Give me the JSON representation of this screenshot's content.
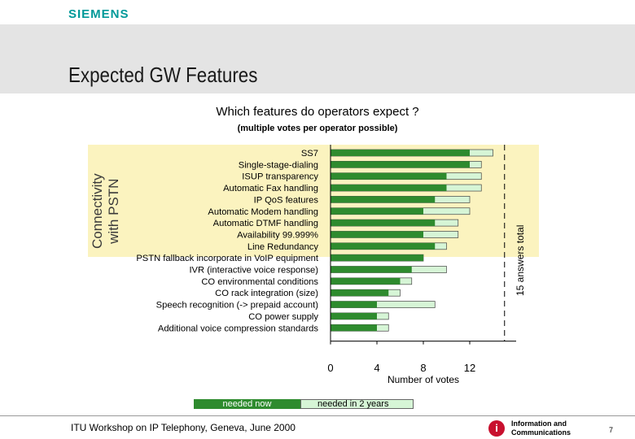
{
  "brand": {
    "logo_text": "SIEMENS",
    "accent": "#009999"
  },
  "slide": {
    "title": "Expected GW Features",
    "group_label_line1": "Connectivity",
    "group_label_line2": "with PSTN",
    "answers_label": "15 answers total",
    "footer": "ITU Workshop on IP Telephony, Geneva, June 2000",
    "ic_line1": "Information and",
    "ic_line2": "Communications",
    "ic_icon_glyph": "i",
    "page_number": "7"
  },
  "legend": {
    "now": "needed now",
    "two_years": "needed in 2 years"
  },
  "colors": {
    "needed_now": "#2e8b2e",
    "needed_2y": "#d6f5d6",
    "highlight": "#fbf3bf"
  },
  "chart_data": {
    "type": "bar",
    "orientation": "horizontal",
    "title": "Which features do operators expect ?",
    "subtitle": "(multiple votes per operator possible)",
    "xlabel": "Number of votes",
    "xlim": [
      0,
      16
    ],
    "xticks": [
      "0",
      "4",
      "8",
      "12"
    ],
    "reference_line": 15,
    "categories": [
      "SS7",
      "Single-stage-dialing",
      "ISUP transparency",
      "Automatic Fax handling",
      "IP QoS features",
      "Automatic Modem handling",
      "Automatic DTMF handling",
      "Availability 99.999%",
      "Line Redundancy",
      "PSTN fallback incorporate in VoIP equipment",
      "IVR (interactive voice response)",
      "CO environmental conditions",
      "CO rack integration (size)",
      "Speech recognition (-> prepaid account)",
      "CO power supply",
      "Additional voice compression standards"
    ],
    "series": [
      {
        "name": "needed now",
        "values": [
          12,
          12,
          10,
          10,
          9,
          8,
          9,
          8,
          9,
          8,
          7,
          6,
          5,
          4,
          4,
          4
        ]
      },
      {
        "name": "needed in 2 years",
        "values": [
          14,
          13,
          13,
          13,
          12,
          12,
          11,
          11,
          10,
          8,
          10,
          7,
          6,
          9,
          5,
          5
        ]
      }
    ]
  }
}
